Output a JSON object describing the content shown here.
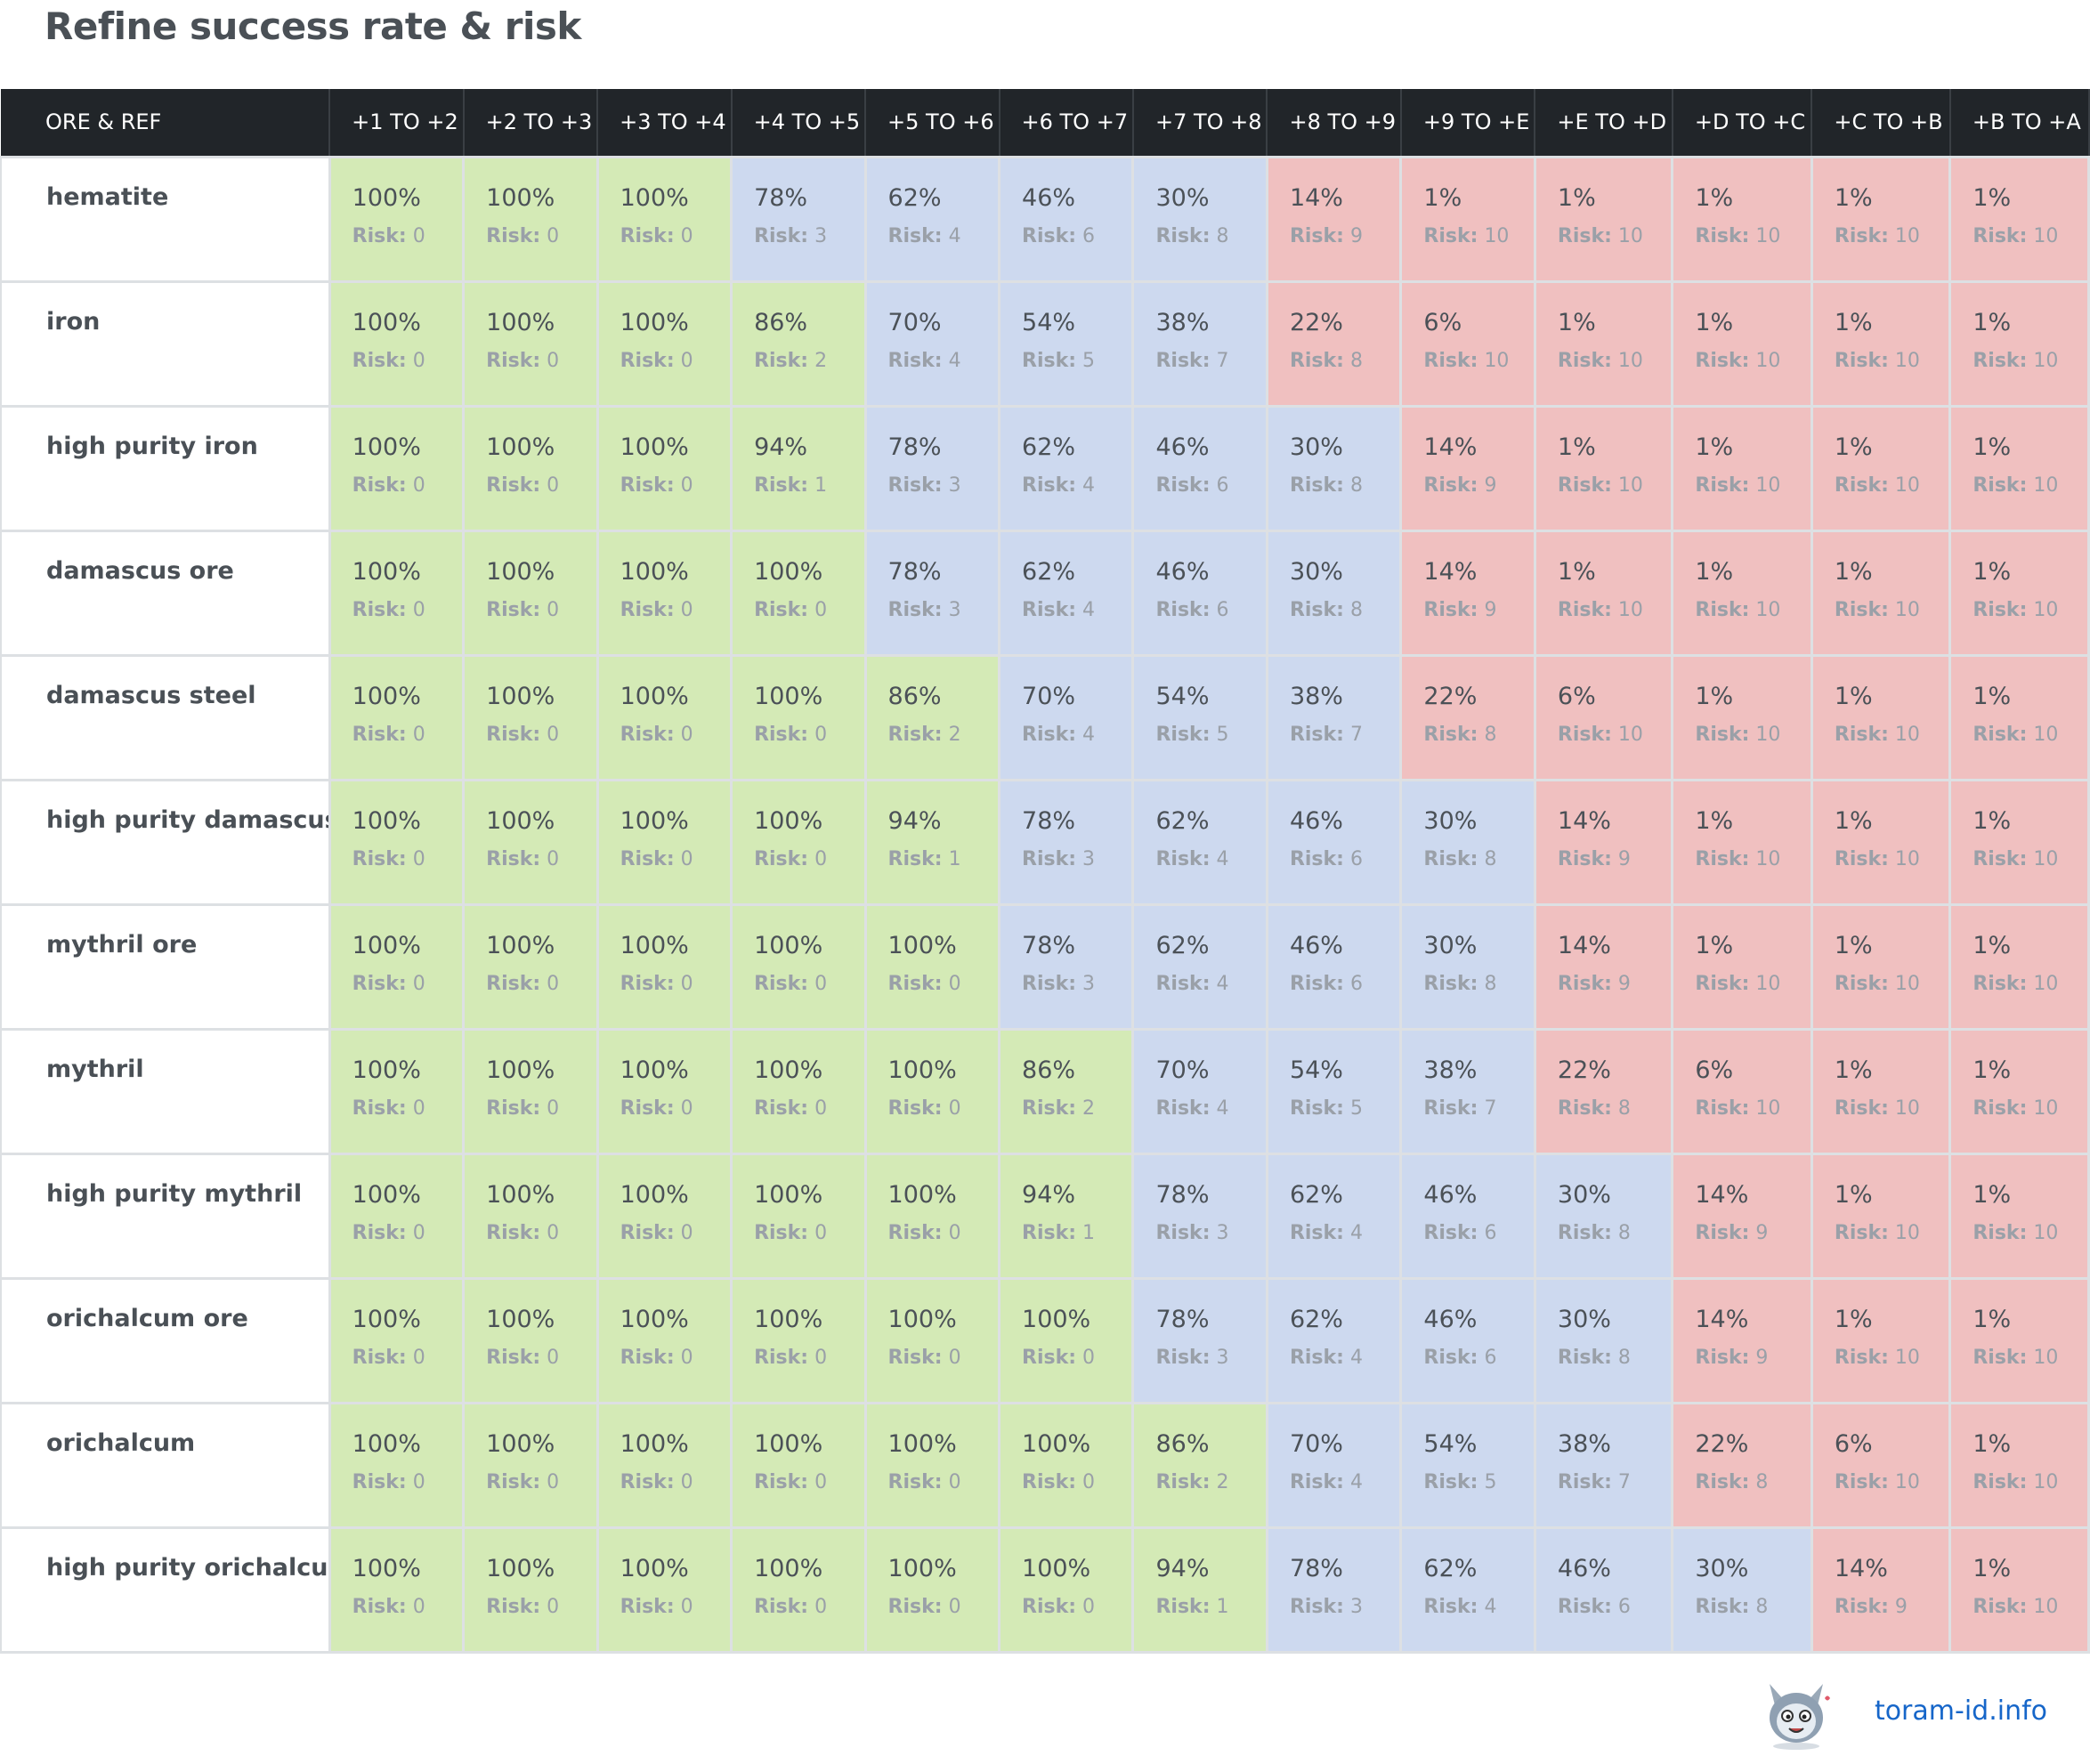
{
  "page": {
    "title": "Refine success rate & risk"
  },
  "colors": {
    "header_bg": "#212529",
    "safe": "#d4eab6",
    "medium": "#cdd9ef",
    "danger": "#f0c0c0",
    "link": "#1666c9"
  },
  "table": {
    "first_column_header": "ORE & REF",
    "risk_label": "Risk:",
    "columns": [
      "+1 TO +2",
      "+2 TO +3",
      "+3 TO +4",
      "+4 TO +5",
      "+5 TO +6",
      "+6 TO +7",
      "+7 TO +8",
      "+8 TO +9",
      "+9 TO +E",
      "+E TO +D",
      "+D TO +C",
      "+C TO +B",
      "+B TO +A"
    ],
    "rows": [
      {
        "ore": "hematite",
        "cells": [
          {
            "rate": "100%",
            "risk": "0",
            "zone": "green"
          },
          {
            "rate": "100%",
            "risk": "0",
            "zone": "green"
          },
          {
            "rate": "100%",
            "risk": "0",
            "zone": "green"
          },
          {
            "rate": "78%",
            "risk": "3",
            "zone": "blue"
          },
          {
            "rate": "62%",
            "risk": "4",
            "zone": "blue"
          },
          {
            "rate": "46%",
            "risk": "6",
            "zone": "blue"
          },
          {
            "rate": "30%",
            "risk": "8",
            "zone": "blue"
          },
          {
            "rate": "14%",
            "risk": "9",
            "zone": "red"
          },
          {
            "rate": "1%",
            "risk": "10",
            "zone": "red"
          },
          {
            "rate": "1%",
            "risk": "10",
            "zone": "red"
          },
          {
            "rate": "1%",
            "risk": "10",
            "zone": "red"
          },
          {
            "rate": "1%",
            "risk": "10",
            "zone": "red"
          },
          {
            "rate": "1%",
            "risk": "10",
            "zone": "red"
          }
        ]
      },
      {
        "ore": "iron",
        "cells": [
          {
            "rate": "100%",
            "risk": "0",
            "zone": "green"
          },
          {
            "rate": "100%",
            "risk": "0",
            "zone": "green"
          },
          {
            "rate": "100%",
            "risk": "0",
            "zone": "green"
          },
          {
            "rate": "86%",
            "risk": "2",
            "zone": "green"
          },
          {
            "rate": "70%",
            "risk": "4",
            "zone": "blue"
          },
          {
            "rate": "54%",
            "risk": "5",
            "zone": "blue"
          },
          {
            "rate": "38%",
            "risk": "7",
            "zone": "blue"
          },
          {
            "rate": "22%",
            "risk": "8",
            "zone": "red"
          },
          {
            "rate": "6%",
            "risk": "10",
            "zone": "red"
          },
          {
            "rate": "1%",
            "risk": "10",
            "zone": "red"
          },
          {
            "rate": "1%",
            "risk": "10",
            "zone": "red"
          },
          {
            "rate": "1%",
            "risk": "10",
            "zone": "red"
          },
          {
            "rate": "1%",
            "risk": "10",
            "zone": "red"
          }
        ]
      },
      {
        "ore": "high purity iron",
        "cells": [
          {
            "rate": "100%",
            "risk": "0",
            "zone": "green"
          },
          {
            "rate": "100%",
            "risk": "0",
            "zone": "green"
          },
          {
            "rate": "100%",
            "risk": "0",
            "zone": "green"
          },
          {
            "rate": "94%",
            "risk": "1",
            "zone": "green"
          },
          {
            "rate": "78%",
            "risk": "3",
            "zone": "blue"
          },
          {
            "rate": "62%",
            "risk": "4",
            "zone": "blue"
          },
          {
            "rate": "46%",
            "risk": "6",
            "zone": "blue"
          },
          {
            "rate": "30%",
            "risk": "8",
            "zone": "blue"
          },
          {
            "rate": "14%",
            "risk": "9",
            "zone": "red"
          },
          {
            "rate": "1%",
            "risk": "10",
            "zone": "red"
          },
          {
            "rate": "1%",
            "risk": "10",
            "zone": "red"
          },
          {
            "rate": "1%",
            "risk": "10",
            "zone": "red"
          },
          {
            "rate": "1%",
            "risk": "10",
            "zone": "red"
          }
        ]
      },
      {
        "ore": "damascus ore",
        "cells": [
          {
            "rate": "100%",
            "risk": "0",
            "zone": "green"
          },
          {
            "rate": "100%",
            "risk": "0",
            "zone": "green"
          },
          {
            "rate": "100%",
            "risk": "0",
            "zone": "green"
          },
          {
            "rate": "100%",
            "risk": "0",
            "zone": "green"
          },
          {
            "rate": "78%",
            "risk": "3",
            "zone": "blue"
          },
          {
            "rate": "62%",
            "risk": "4",
            "zone": "blue"
          },
          {
            "rate": "46%",
            "risk": "6",
            "zone": "blue"
          },
          {
            "rate": "30%",
            "risk": "8",
            "zone": "blue"
          },
          {
            "rate": "14%",
            "risk": "9",
            "zone": "red"
          },
          {
            "rate": "1%",
            "risk": "10",
            "zone": "red"
          },
          {
            "rate": "1%",
            "risk": "10",
            "zone": "red"
          },
          {
            "rate": "1%",
            "risk": "10",
            "zone": "red"
          },
          {
            "rate": "1%",
            "risk": "10",
            "zone": "red"
          }
        ]
      },
      {
        "ore": "damascus steel",
        "cells": [
          {
            "rate": "100%",
            "risk": "0",
            "zone": "green"
          },
          {
            "rate": "100%",
            "risk": "0",
            "zone": "green"
          },
          {
            "rate": "100%",
            "risk": "0",
            "zone": "green"
          },
          {
            "rate": "100%",
            "risk": "0",
            "zone": "green"
          },
          {
            "rate": "86%",
            "risk": "2",
            "zone": "green"
          },
          {
            "rate": "70%",
            "risk": "4",
            "zone": "blue"
          },
          {
            "rate": "54%",
            "risk": "5",
            "zone": "blue"
          },
          {
            "rate": "38%",
            "risk": "7",
            "zone": "blue"
          },
          {
            "rate": "22%",
            "risk": "8",
            "zone": "red"
          },
          {
            "rate": "6%",
            "risk": "10",
            "zone": "red"
          },
          {
            "rate": "1%",
            "risk": "10",
            "zone": "red"
          },
          {
            "rate": "1%",
            "risk": "10",
            "zone": "red"
          },
          {
            "rate": "1%",
            "risk": "10",
            "zone": "red"
          }
        ]
      },
      {
        "ore": "high purity damascus",
        "cells": [
          {
            "rate": "100%",
            "risk": "0",
            "zone": "green"
          },
          {
            "rate": "100%",
            "risk": "0",
            "zone": "green"
          },
          {
            "rate": "100%",
            "risk": "0",
            "zone": "green"
          },
          {
            "rate": "100%",
            "risk": "0",
            "zone": "green"
          },
          {
            "rate": "94%",
            "risk": "1",
            "zone": "green"
          },
          {
            "rate": "78%",
            "risk": "3",
            "zone": "blue"
          },
          {
            "rate": "62%",
            "risk": "4",
            "zone": "blue"
          },
          {
            "rate": "46%",
            "risk": "6",
            "zone": "blue"
          },
          {
            "rate": "30%",
            "risk": "8",
            "zone": "blue"
          },
          {
            "rate": "14%",
            "risk": "9",
            "zone": "red"
          },
          {
            "rate": "1%",
            "risk": "10",
            "zone": "red"
          },
          {
            "rate": "1%",
            "risk": "10",
            "zone": "red"
          },
          {
            "rate": "1%",
            "risk": "10",
            "zone": "red"
          }
        ]
      },
      {
        "ore": "mythril ore",
        "cells": [
          {
            "rate": "100%",
            "risk": "0",
            "zone": "green"
          },
          {
            "rate": "100%",
            "risk": "0",
            "zone": "green"
          },
          {
            "rate": "100%",
            "risk": "0",
            "zone": "green"
          },
          {
            "rate": "100%",
            "risk": "0",
            "zone": "green"
          },
          {
            "rate": "100%",
            "risk": "0",
            "zone": "green"
          },
          {
            "rate": "78%",
            "risk": "3",
            "zone": "blue"
          },
          {
            "rate": "62%",
            "risk": "4",
            "zone": "blue"
          },
          {
            "rate": "46%",
            "risk": "6",
            "zone": "blue"
          },
          {
            "rate": "30%",
            "risk": "8",
            "zone": "blue"
          },
          {
            "rate": "14%",
            "risk": "9",
            "zone": "red"
          },
          {
            "rate": "1%",
            "risk": "10",
            "zone": "red"
          },
          {
            "rate": "1%",
            "risk": "10",
            "zone": "red"
          },
          {
            "rate": "1%",
            "risk": "10",
            "zone": "red"
          }
        ]
      },
      {
        "ore": "mythril",
        "cells": [
          {
            "rate": "100%",
            "risk": "0",
            "zone": "green"
          },
          {
            "rate": "100%",
            "risk": "0",
            "zone": "green"
          },
          {
            "rate": "100%",
            "risk": "0",
            "zone": "green"
          },
          {
            "rate": "100%",
            "risk": "0",
            "zone": "green"
          },
          {
            "rate": "100%",
            "risk": "0",
            "zone": "green"
          },
          {
            "rate": "86%",
            "risk": "2",
            "zone": "green"
          },
          {
            "rate": "70%",
            "risk": "4",
            "zone": "blue"
          },
          {
            "rate": "54%",
            "risk": "5",
            "zone": "blue"
          },
          {
            "rate": "38%",
            "risk": "7",
            "zone": "blue"
          },
          {
            "rate": "22%",
            "risk": "8",
            "zone": "red"
          },
          {
            "rate": "6%",
            "risk": "10",
            "zone": "red"
          },
          {
            "rate": "1%",
            "risk": "10",
            "zone": "red"
          },
          {
            "rate": "1%",
            "risk": "10",
            "zone": "red"
          }
        ]
      },
      {
        "ore": "high purity mythril",
        "cells": [
          {
            "rate": "100%",
            "risk": "0",
            "zone": "green"
          },
          {
            "rate": "100%",
            "risk": "0",
            "zone": "green"
          },
          {
            "rate": "100%",
            "risk": "0",
            "zone": "green"
          },
          {
            "rate": "100%",
            "risk": "0",
            "zone": "green"
          },
          {
            "rate": "100%",
            "risk": "0",
            "zone": "green"
          },
          {
            "rate": "94%",
            "risk": "1",
            "zone": "green"
          },
          {
            "rate": "78%",
            "risk": "3",
            "zone": "blue"
          },
          {
            "rate": "62%",
            "risk": "4",
            "zone": "blue"
          },
          {
            "rate": "46%",
            "risk": "6",
            "zone": "blue"
          },
          {
            "rate": "30%",
            "risk": "8",
            "zone": "blue"
          },
          {
            "rate": "14%",
            "risk": "9",
            "zone": "red"
          },
          {
            "rate": "1%",
            "risk": "10",
            "zone": "red"
          },
          {
            "rate": "1%",
            "risk": "10",
            "zone": "red"
          }
        ]
      },
      {
        "ore": "orichalcum ore",
        "cells": [
          {
            "rate": "100%",
            "risk": "0",
            "zone": "green"
          },
          {
            "rate": "100%",
            "risk": "0",
            "zone": "green"
          },
          {
            "rate": "100%",
            "risk": "0",
            "zone": "green"
          },
          {
            "rate": "100%",
            "risk": "0",
            "zone": "green"
          },
          {
            "rate": "100%",
            "risk": "0",
            "zone": "green"
          },
          {
            "rate": "100%",
            "risk": "0",
            "zone": "green"
          },
          {
            "rate": "78%",
            "risk": "3",
            "zone": "blue"
          },
          {
            "rate": "62%",
            "risk": "4",
            "zone": "blue"
          },
          {
            "rate": "46%",
            "risk": "6",
            "zone": "blue"
          },
          {
            "rate": "30%",
            "risk": "8",
            "zone": "blue"
          },
          {
            "rate": "14%",
            "risk": "9",
            "zone": "red"
          },
          {
            "rate": "1%",
            "risk": "10",
            "zone": "red"
          },
          {
            "rate": "1%",
            "risk": "10",
            "zone": "red"
          }
        ]
      },
      {
        "ore": "orichalcum",
        "cells": [
          {
            "rate": "100%",
            "risk": "0",
            "zone": "green"
          },
          {
            "rate": "100%",
            "risk": "0",
            "zone": "green"
          },
          {
            "rate": "100%",
            "risk": "0",
            "zone": "green"
          },
          {
            "rate": "100%",
            "risk": "0",
            "zone": "green"
          },
          {
            "rate": "100%",
            "risk": "0",
            "zone": "green"
          },
          {
            "rate": "100%",
            "risk": "0",
            "zone": "green"
          },
          {
            "rate": "86%",
            "risk": "2",
            "zone": "green"
          },
          {
            "rate": "70%",
            "risk": "4",
            "zone": "blue"
          },
          {
            "rate": "54%",
            "risk": "5",
            "zone": "blue"
          },
          {
            "rate": "38%",
            "risk": "7",
            "zone": "blue"
          },
          {
            "rate": "22%",
            "risk": "8",
            "zone": "red"
          },
          {
            "rate": "6%",
            "risk": "10",
            "zone": "red"
          },
          {
            "rate": "1%",
            "risk": "10",
            "zone": "red"
          }
        ]
      },
      {
        "ore": "high purity orichalcum",
        "cells": [
          {
            "rate": "100%",
            "risk": "0",
            "zone": "green"
          },
          {
            "rate": "100%",
            "risk": "0",
            "zone": "green"
          },
          {
            "rate": "100%",
            "risk": "0",
            "zone": "green"
          },
          {
            "rate": "100%",
            "risk": "0",
            "zone": "green"
          },
          {
            "rate": "100%",
            "risk": "0",
            "zone": "green"
          },
          {
            "rate": "100%",
            "risk": "0",
            "zone": "green"
          },
          {
            "rate": "94%",
            "risk": "1",
            "zone": "green"
          },
          {
            "rate": "78%",
            "risk": "3",
            "zone": "blue"
          },
          {
            "rate": "62%",
            "risk": "4",
            "zone": "blue"
          },
          {
            "rate": "46%",
            "risk": "6",
            "zone": "blue"
          },
          {
            "rate": "30%",
            "risk": "8",
            "zone": "blue"
          },
          {
            "rate": "14%",
            "risk": "9",
            "zone": "red"
          },
          {
            "rate": "1%",
            "risk": "10",
            "zone": "red"
          }
        ]
      }
    ]
  },
  "footer": {
    "logo_icon": "mascot-logo-icon",
    "site_link": "toram-id.info"
  }
}
